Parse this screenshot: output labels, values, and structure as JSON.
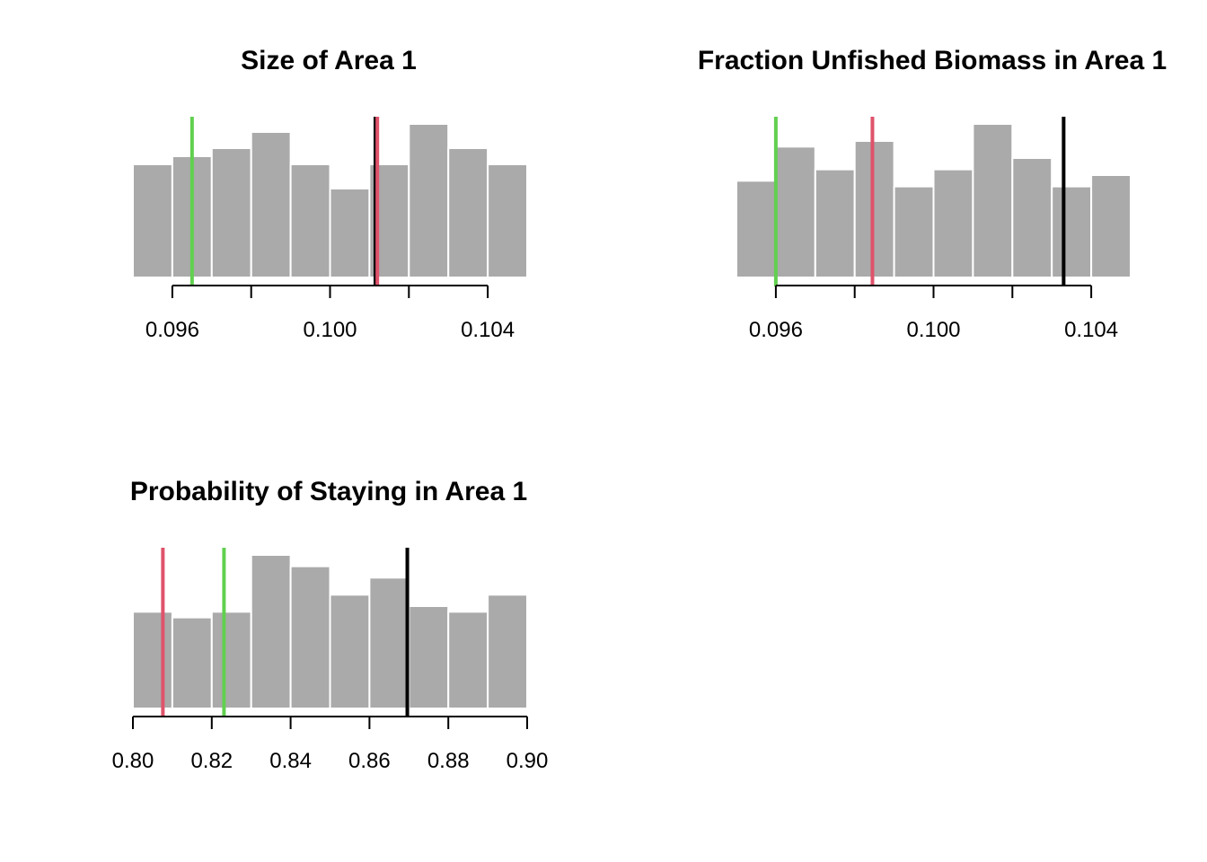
{
  "chart_data": [
    {
      "type": "histogram",
      "title": "Size of Area 1",
      "bins": [
        0.095,
        0.096,
        0.097,
        0.098,
        0.099,
        0.1,
        0.101,
        0.102,
        0.103,
        0.104,
        0.105
      ],
      "counts": [
        7,
        7.5,
        8,
        9,
        7,
        5.5,
        7,
        9.5,
        8,
        7
      ],
      "count_max": 9.5,
      "xticks": [
        0.096,
        0.098,
        0.1,
        0.102,
        0.104
      ],
      "xtick_labels": [
        "0.096",
        "",
        "0.100",
        "",
        "0.104"
      ],
      "axis_range": [
        0.096,
        0.104
      ],
      "vlines": [
        {
          "value": 0.0965,
          "color": "#61d04f"
        },
        {
          "value": 0.10115,
          "color": "#000000"
        },
        {
          "value": 0.1012,
          "color": "#df536b"
        }
      ]
    },
    {
      "type": "histogram",
      "title": "Fraction Unfished Biomass in Area 1",
      "bins": [
        0.095,
        0.096,
        0.097,
        0.098,
        0.099,
        0.1,
        0.101,
        0.102,
        0.103,
        0.104,
        0.105
      ],
      "counts": [
        8.5,
        11.5,
        9.5,
        12,
        8,
        9.5,
        13.5,
        10.5,
        8,
        9
      ],
      "count_max": 13.5,
      "xticks": [
        0.096,
        0.098,
        0.1,
        0.102,
        0.104
      ],
      "xtick_labels": [
        "0.096",
        "",
        "0.100",
        "",
        "0.104"
      ],
      "axis_range": [
        0.096,
        0.104
      ],
      "vlines": [
        {
          "value": 0.096,
          "color": "#61d04f"
        },
        {
          "value": 0.09845,
          "color": "#df536b"
        },
        {
          "value": 0.1033,
          "color": "#000000"
        }
      ]
    },
    {
      "type": "histogram",
      "title": "Probability of Staying in Area 1",
      "bins": [
        0.8,
        0.81,
        0.82,
        0.83,
        0.84,
        0.85,
        0.86,
        0.87,
        0.88,
        0.89,
        0.9
      ],
      "counts": [
        8.5,
        8,
        8.5,
        13.5,
        12.5,
        10,
        11.5,
        9,
        8.5,
        10
      ],
      "count_max": 13.5,
      "xticks": [
        0.8,
        0.82,
        0.84,
        0.86,
        0.88,
        0.9
      ],
      "xtick_labels": [
        "0.80",
        "0.82",
        "0.84",
        "0.86",
        "0.88",
        "0.90"
      ],
      "axis_range": [
        0.8,
        0.9
      ],
      "vlines": [
        {
          "value": 0.8076,
          "color": "#df536b"
        },
        {
          "value": 0.8231,
          "color": "#61d04f"
        },
        {
          "value": 0.8696,
          "color": "#000000"
        }
      ]
    }
  ]
}
